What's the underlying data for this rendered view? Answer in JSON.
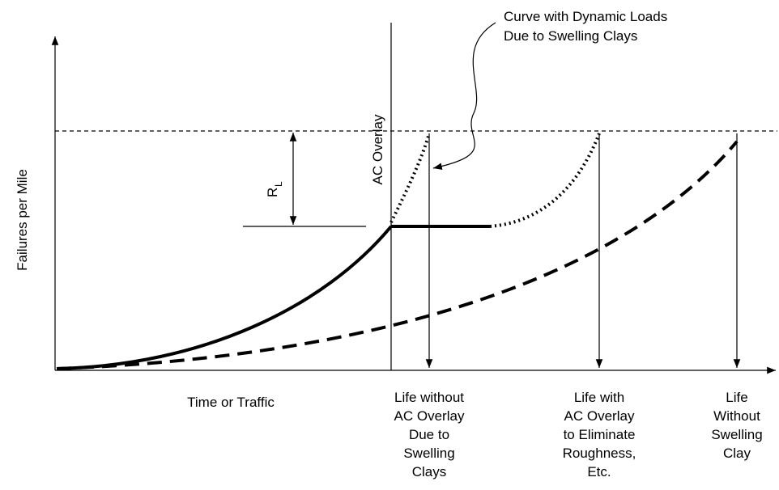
{
  "axes": {
    "y_label": "Failures per Mile",
    "x_label": "Time or Traffic"
  },
  "annotations": {
    "dynamic_curve": [
      "Curve with Dynamic Loads",
      "Due to Swelling Clays"
    ],
    "overlay": "AC Overlay",
    "rl": {
      "main": "R",
      "sub": "L"
    }
  },
  "life_labels": [
    [
      "Life without",
      "AC Overlay",
      "Due to",
      "Swelling",
      "Clays"
    ],
    [
      "Life with",
      "AC Overlay",
      "to Eliminate",
      "Roughness,",
      "Etc."
    ],
    [
      "Life",
      "Without",
      "Swelling",
      "Clay"
    ]
  ]
}
